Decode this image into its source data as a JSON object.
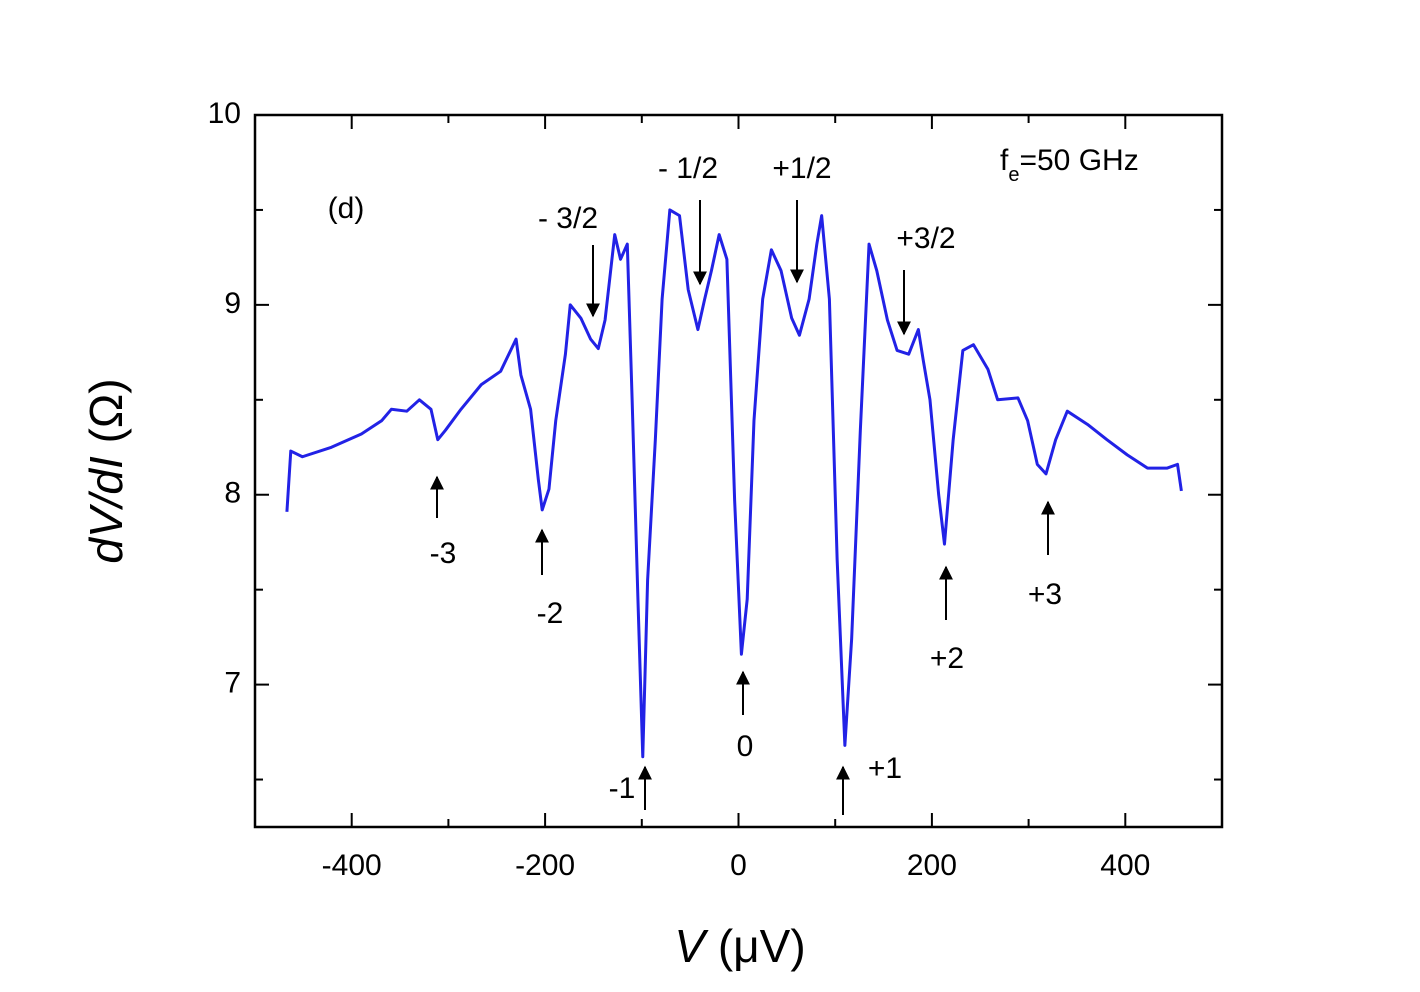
{
  "chart_data": {
    "type": "line",
    "xlabel_italic": "V",
    "xlabel_unit": "(μV)",
    "ylabel_italic": "dV/dI",
    "ylabel_unit": "(Ω)",
    "panel_label": "(d)",
    "freq_label": {
      "base": "f",
      "sub": "e",
      "rest": "=50 GHz"
    },
    "xlim": [
      -500,
      500
    ],
    "ylim": [
      6.25,
      10
    ],
    "xticks": [
      -400,
      -200,
      0,
      200,
      400
    ],
    "xminor": [
      -300,
      -100,
      100,
      300
    ],
    "yticks": [
      7,
      8,
      9,
      10
    ],
    "yminor": [
      6.5,
      7.5,
      8.5,
      9.5
    ],
    "annotations": [
      "-3",
      "-2",
      "-1",
      "0",
      "+1",
      "+2",
      "+3",
      "- 3/2",
      "- 1/2",
      "+1/2",
      "+3/2"
    ],
    "series": [
      {
        "color": "#2222e6",
        "x": [
          -467,
          -463,
          -451,
          -421,
          -390,
          -369,
          -359,
          -343,
          -330,
          -318,
          -311,
          -303,
          -287,
          -266,
          -246,
          -230,
          -225,
          -215,
          -207,
          -203,
          -196,
          -189,
          -179,
          -174,
          -163,
          -153,
          -145,
          -138,
          -128,
          -122,
          -115,
          -110,
          -104,
          -99,
          -94,
          -86,
          -79,
          -71,
          -61,
          -52,
          -42,
          -35,
          -28,
          -20,
          -12,
          -4,
          3,
          9,
          16,
          25,
          34,
          44,
          55,
          63,
          73,
          81,
          86,
          94,
          102,
          110,
          117,
          126,
          135,
          143,
          154,
          164,
          176,
          186,
          191,
          198,
          207,
          213,
          222,
          232,
          243,
          258,
          268,
          289,
          299,
          309,
          318,
          328,
          340,
          361,
          381,
          402,
          423,
          443,
          454,
          458
        ],
        "values": [
          7.91,
          8.23,
          8.2,
          8.25,
          8.32,
          8.39,
          8.45,
          8.44,
          8.5,
          8.45,
          8.29,
          8.34,
          8.45,
          8.58,
          8.65,
          8.82,
          8.63,
          8.45,
          8.08,
          7.92,
          8.03,
          8.39,
          8.74,
          9.0,
          8.93,
          8.82,
          8.77,
          8.92,
          9.37,
          9.24,
          9.32,
          8.5,
          7.45,
          6.62,
          7.55,
          8.29,
          9.03,
          9.5,
          9.47,
          9.08,
          8.87,
          9.03,
          9.18,
          9.37,
          9.24,
          7.97,
          7.16,
          7.45,
          8.39,
          9.03,
          9.29,
          9.18,
          8.93,
          8.84,
          9.03,
          9.32,
          9.47,
          9.03,
          7.66,
          6.68,
          7.24,
          8.34,
          9.32,
          9.18,
          8.92,
          8.76,
          8.74,
          8.87,
          8.71,
          8.5,
          8.0,
          7.74,
          8.29,
          8.76,
          8.79,
          8.66,
          8.5,
          8.51,
          8.39,
          8.16,
          8.11,
          8.29,
          8.44,
          8.37,
          8.29,
          8.21,
          8.14,
          8.14,
          8.16,
          8.02
        ]
      }
    ]
  }
}
